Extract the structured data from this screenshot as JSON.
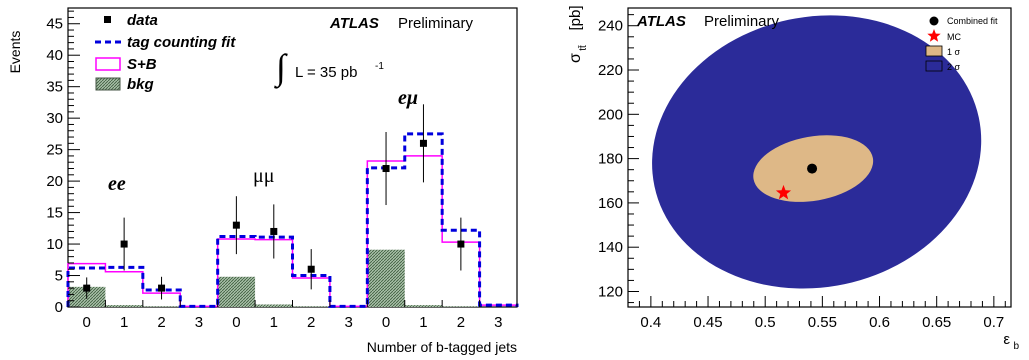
{
  "chart_data": [
    {
      "type": "bar",
      "xlabel": "Number of b-tagged jets",
      "ylabel": "Events",
      "ylim": [
        0,
        47.5
      ],
      "yticks_major": [
        0,
        5,
        10,
        15,
        20,
        25,
        30,
        35,
        40,
        45
      ],
      "tick_labels_x": [
        "0",
        "1",
        "2",
        "3",
        "0",
        "1",
        "2",
        "3",
        "0",
        "1",
        "2",
        "3"
      ],
      "atlas_label": "ATLAS",
      "prelim_label": "Preliminary",
      "lumi_text": "L = 35 pb",
      "lumi_exp": "-1",
      "channels": [
        {
          "label": "ee",
          "bins": [
            0,
            1,
            2,
            3
          ]
        },
        {
          "label": "μμ",
          "bins": [
            4,
            5,
            6,
            7
          ]
        },
        {
          "label": "eμ",
          "bins": [
            8,
            9,
            10,
            11
          ]
        }
      ],
      "legend": {
        "data": "data",
        "fit": "tag counting fit",
        "sb": "S+B",
        "bkg": "bkg"
      },
      "series": [
        {
          "key": "data",
          "values": [
            3,
            10,
            3,
            null,
            13,
            12,
            6,
            null,
            22,
            26,
            10,
            null
          ],
          "errors": [
            1.7,
            4.2,
            1.8,
            null,
            4.6,
            4.3,
            3.2,
            null,
            5.8,
            6.2,
            4.2,
            null
          ]
        },
        {
          "key": "fit",
          "values": [
            6.2,
            6.3,
            2.7,
            0.1,
            11.2,
            11.1,
            5.0,
            0.1,
            22.1,
            27.5,
            12.2,
            0.3
          ]
        },
        {
          "key": "sb",
          "values": [
            6.9,
            5.6,
            2.2,
            0.1,
            10.8,
            10.7,
            4.6,
            0.1,
            23.2,
            24.0,
            10.3,
            0.3
          ]
        },
        {
          "key": "bkg",
          "values": [
            3.2,
            0.3,
            0.1,
            0.0,
            4.8,
            0.4,
            0.1,
            0.0,
            9.1,
            0.3,
            0.1,
            0.0
          ]
        }
      ],
      "colors": {
        "fit": "#0000dd",
        "sb": "#ff00ff",
        "bkg": "#7a9a7a",
        "data": "#000000"
      }
    },
    {
      "type": "contour",
      "xlabel": "ε",
      "xlabel_sub": "b",
      "ylabel": "σ",
      "ylabel_sub": "tt̄",
      "ylabel_unit": "[pb]",
      "xlim": [
        0.38,
        0.715
      ],
      "ylim": [
        113,
        248
      ],
      "xticks": [
        0.4,
        0.45,
        0.5,
        0.55,
        0.6,
        0.65,
        0.7
      ],
      "xtick_labels": [
        "0.4",
        "0.45",
        "0.5",
        "0.55",
        "0.6",
        "0.65",
        "0.7"
      ],
      "yticks": [
        120,
        140,
        160,
        180,
        200,
        220,
        240
      ],
      "atlas_label": "ATLAS",
      "prelim_label": "Preliminary",
      "legend": {
        "fit": "Combined fit",
        "mc": "MC",
        "s1": "1",
        "s2": "2",
        "sigma": "σ"
      },
      "best_fit": {
        "x": 0.541,
        "y": 175.5
      },
      "mc_point": {
        "x": 0.516,
        "y": 164.5
      },
      "contour_1sigma": {
        "cx": 0.542,
        "cy": 175.5,
        "rx": 0.053,
        "ry": 14.5,
        "tilt": -10
      },
      "contour_2sigma": {
        "cx": 0.545,
        "cy": 183,
        "rx": 0.145,
        "ry": 61,
        "tilt": -12
      },
      "colors": {
        "s1": "#deb887",
        "s2": "#2b2b99",
        "fit": "#000000",
        "mc": "#ff0000"
      }
    }
  ]
}
